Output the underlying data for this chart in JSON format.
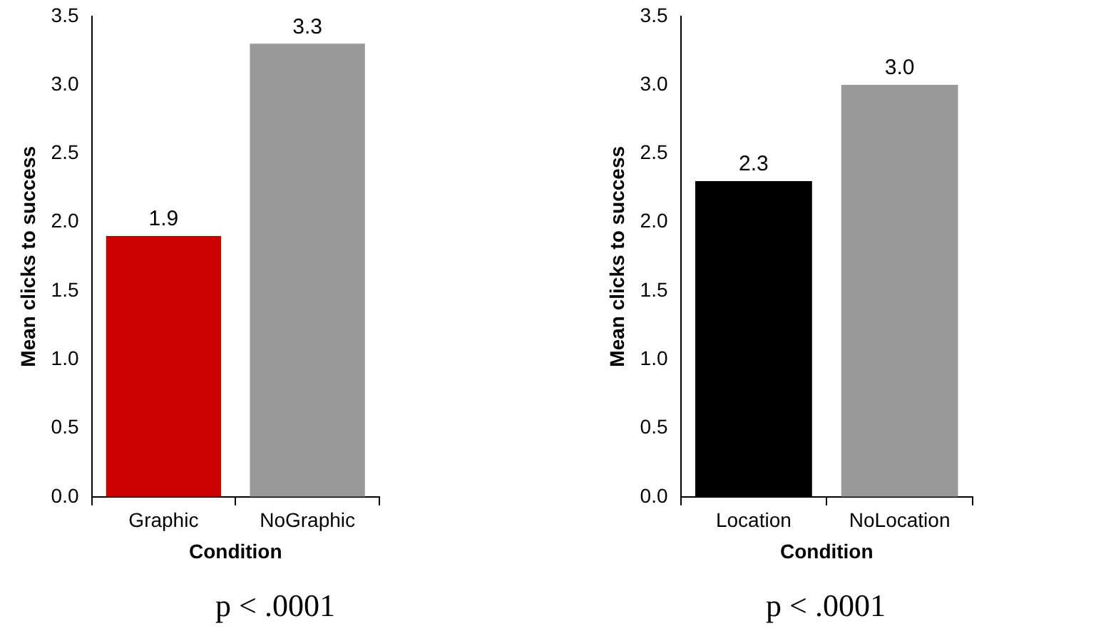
{
  "chart_data": [
    {
      "type": "bar",
      "categories": [
        "Graphic",
        "NoGraphic"
      ],
      "values": [
        1.9,
        3.3
      ],
      "colors": [
        "#cc0000",
        "#999999"
      ],
      "value_labels": [
        "1.9",
        "3.3"
      ],
      "xlabel": "Condition",
      "ylabel": "Mean clicks to success",
      "ylim": [
        0,
        3.5
      ],
      "yticks": [
        {
          "value": 0,
          "label": "0.0"
        },
        {
          "value": 0.5,
          "label": "0.5"
        },
        {
          "value": 1,
          "label": "1.0"
        },
        {
          "value": 1.5,
          "label": "1.5"
        },
        {
          "value": 2,
          "label": "2.0"
        },
        {
          "value": 2.5,
          "label": "2.5"
        },
        {
          "value": 3,
          "label": "3.0"
        },
        {
          "value": 3.5,
          "label": "3.5"
        }
      ],
      "grid": false,
      "legend": false,
      "annotations": [
        "p < .0001"
      ]
    },
    {
      "type": "bar",
      "categories": [
        "Location",
        "NoLocation"
      ],
      "values": [
        2.3,
        3.0
      ],
      "colors": [
        "#000000",
        "#999999"
      ],
      "value_labels": [
        "2.3",
        "3.0"
      ],
      "xlabel": "Condition",
      "ylabel": "Mean clicks to success",
      "ylim": [
        0,
        3.5
      ],
      "yticks": [
        {
          "value": 0,
          "label": "0.0"
        },
        {
          "value": 0.5,
          "label": "0.5"
        },
        {
          "value": 1,
          "label": "1.0"
        },
        {
          "value": 1.5,
          "label": "1.5"
        },
        {
          "value": 2,
          "label": "2.0"
        },
        {
          "value": 2.5,
          "label": "2.5"
        },
        {
          "value": 3,
          "label": "3.0"
        },
        {
          "value": 3.5,
          "label": "3.5"
        }
      ],
      "grid": false,
      "legend": false,
      "annotations": [
        "p < .0001"
      ]
    }
  ]
}
